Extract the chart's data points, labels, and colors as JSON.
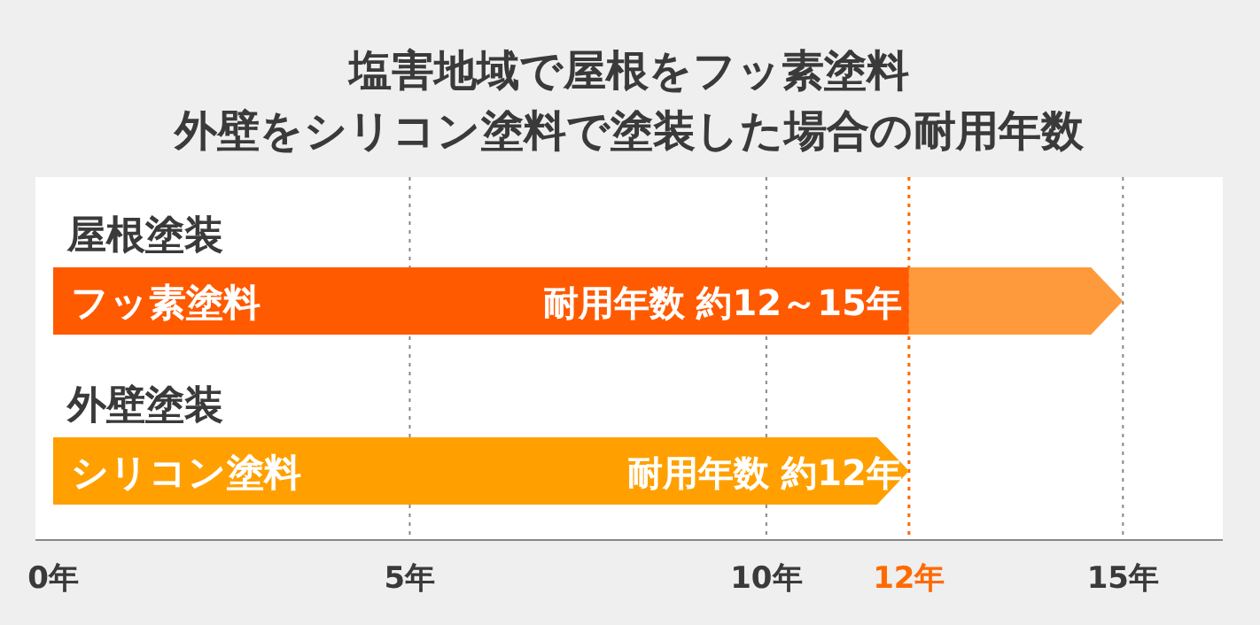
{
  "chart_data": {
    "type": "bar",
    "orientation": "horizontal",
    "stacked": true,
    "title": "塩害地域で屋根をフッ素塗料",
    "subtitle": "外壁をシリコン塗料で塗装した場合の耐用年数",
    "categories": [
      "屋根塗装",
      "外壁塗装"
    ],
    "series": [
      {
        "colors": [
          "#ff5a00",
          "#ffa000"
        ],
        "values": [
          12,
          12
        ]
      },
      {
        "color": "#ff9a3c",
        "values": [
          3,
          null
        ]
      }
    ],
    "annotations": [
      "フッ素塗料",
      "耐用年数 約12～15年",
      "シリコン塗料",
      "耐用年数 約12年"
    ],
    "xlim": [
      0,
      16.4
    ],
    "xticks": [
      {
        "value": 0,
        "label": "0年"
      },
      {
        "value": 5,
        "label": "5年"
      },
      {
        "value": 10,
        "label": "10年"
      },
      {
        "value": 12,
        "label": "12年"
      },
      {
        "value": 15,
        "label": "15年"
      }
    ],
    "ref_lines": [
      {
        "axis": "x",
        "value": 12,
        "color": "#ff6a00",
        "line_style": "dotted"
      }
    ],
    "grid": "x"
  }
}
